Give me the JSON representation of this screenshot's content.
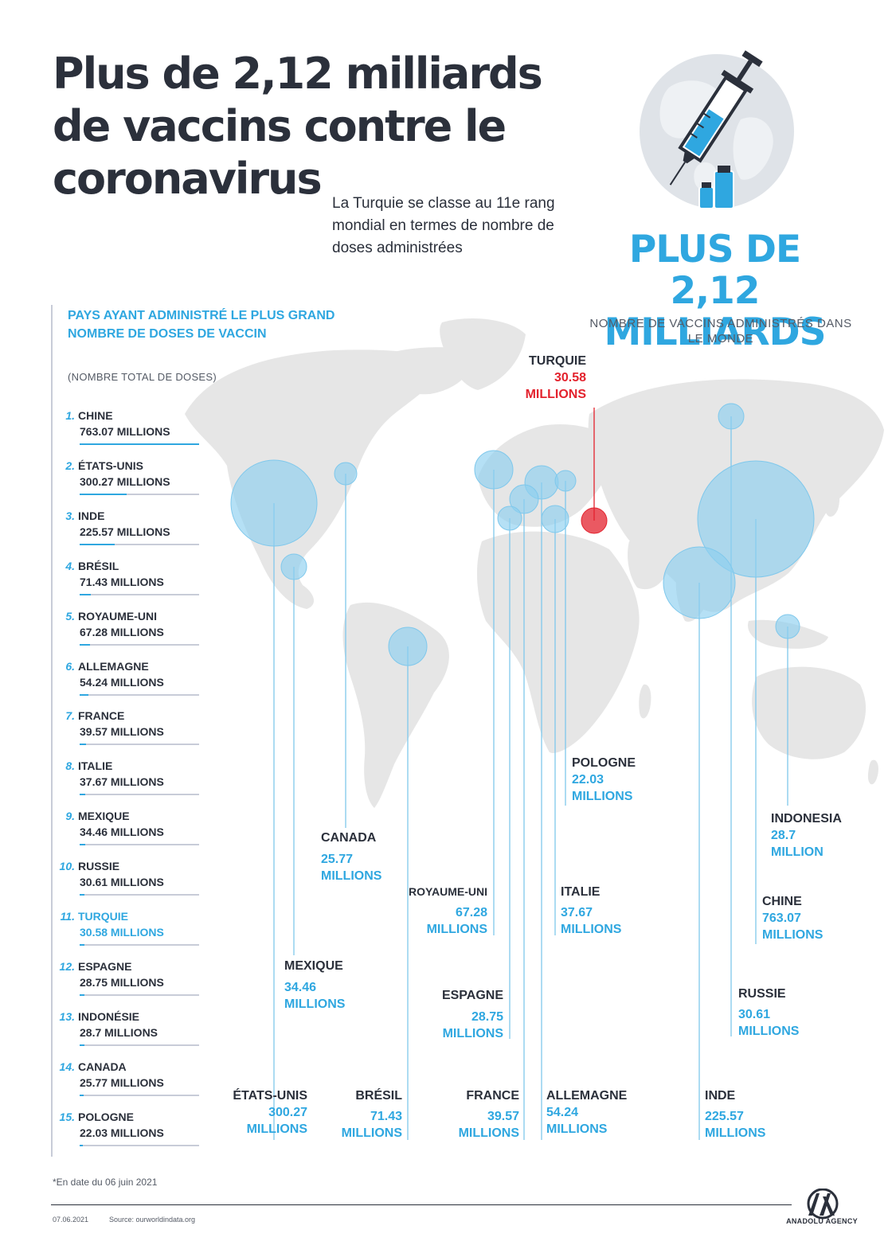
{
  "header": {
    "title": "Plus de 2,12 milliards de vaccins contre le coronavirus",
    "subtitle": "La Turquie se classe au 11e rang mondial en termes de nombre de doses administrées"
  },
  "total": {
    "headline": "PLUS DE 2,12 MILLIARDS",
    "caption": "NOMBRE DE VACCINS ADMINISTRÉS DANS LE MONDE"
  },
  "ranking": {
    "title": "PAYS AYANT ADMINISTRÉ LE PLUS GRAND NOMBRE DE DOSES DE VACCIN",
    "note": "(NOMBRE TOTAL DE DOSES)",
    "items": [
      {
        "rank": "1.",
        "name": "CHINE",
        "value_text": "763.07 MILLIONS",
        "value": 763.07
      },
      {
        "rank": "2.",
        "name": "ÉTATS-UNIS",
        "value_text": "300.27 MILLIONS",
        "value": 300.27
      },
      {
        "rank": "3.",
        "name": "INDE",
        "value_text": "225.57 MILLIONS",
        "value": 225.57
      },
      {
        "rank": "4.",
        "name": "BRÉSIL",
        "value_text": "71.43 MILLIONS",
        "value": 71.43
      },
      {
        "rank": "5.",
        "name": "ROYAUME-UNI",
        "value_text": "67.28 MILLIONS",
        "value": 67.28
      },
      {
        "rank": "6.",
        "name": "ALLEMAGNE",
        "value_text": "54.24 MILLIONS",
        "value": 54.24
      },
      {
        "rank": "7.",
        "name": "FRANCE",
        "value_text": "39.57 MILLIONS",
        "value": 39.57
      },
      {
        "rank": "8.",
        "name": "ITALIE",
        "value_text": "37.67 MILLIONS",
        "value": 37.67
      },
      {
        "rank": "9.",
        "name": "MEXIQUE",
        "value_text": "34.46 MILLIONS",
        "value": 34.46
      },
      {
        "rank": "10.",
        "name": "RUSSIE",
        "value_text": "30.61 MILLIONS",
        "value": 30.61
      },
      {
        "rank": "11.",
        "name": "TURQUIE",
        "value_text": "30.58 MILLIONS",
        "value": 30.58,
        "highlight": true
      },
      {
        "rank": "12.",
        "name": "ESPAGNE",
        "value_text": "28.75 MILLIONS",
        "value": 28.75
      },
      {
        "rank": "13.",
        "name": "INDONÉSIE",
        "value_text": "28.7 MILLIONS",
        "value": 28.7
      },
      {
        "rank": "14.",
        "name": "CANADA",
        "value_text": "25.77 MILLIONS",
        "value": 25.77
      },
      {
        "rank": "15.",
        "name": "POLOGNE",
        "value_text": "22.03 MILLIONS",
        "value": 22.03
      }
    ]
  },
  "callouts": {
    "turquie": {
      "name": "TURQUIE",
      "line1": "30.58",
      "line2": "MILLIONS"
    },
    "pologne": {
      "name": "POLOGNE",
      "line1": "22.03",
      "line2": "MILLIONS"
    },
    "indonesia": {
      "name": "INDONESIA",
      "line1": "28.7",
      "line2": "MILLION"
    },
    "canada": {
      "name": "CANADA",
      "line1": "25.77",
      "line2": "MILLIONS"
    },
    "royaume_uni": {
      "name": "ROYAUME-UNI",
      "line1": "67.28",
      "line2": "MILLIONS"
    },
    "italie": {
      "name": "ITALIE",
      "line1": "37.67",
      "line2": "MILLIONS"
    },
    "chine": {
      "name": "CHINE",
      "line1": "763.07",
      "line2": "MILLIONS"
    },
    "mexique": {
      "name": "MEXIQUE",
      "line1": "34.46",
      "line2": "MILLIONS"
    },
    "espagne": {
      "name": "ESPAGNE",
      "line1": "28.75",
      "line2": "MILLIONS"
    },
    "russie": {
      "name": "RUSSIE",
      "line1": "30.61",
      "line2": "MILLIONS"
    },
    "etats_unis": {
      "name": "ÉTATS-UNIS",
      "line1": "300.27",
      "line2": "MILLIONS"
    },
    "bresil": {
      "name": "BRÉSIL",
      "line1": "71.43",
      "line2": "MILLIONS"
    },
    "france": {
      "name": "FRANCE",
      "line1": "39.57",
      "line2": "MILLIONS"
    },
    "allemagne": {
      "name": "ALLEMAGNE",
      "line1": "54.24",
      "line2": "MILLIONS"
    },
    "inde": {
      "name": "INDE",
      "line1": "225.57",
      "line2": "MILLIONS"
    }
  },
  "footer": {
    "footnote": "*En date du 06 juin 2021",
    "date": "07.06.2021",
    "source": "Source: ourworldindata.org",
    "agency": "ANADOLU AGENCY"
  },
  "colors": {
    "accent": "#2fa7e0",
    "highlight": "#e3222d",
    "text": "#2b303b",
    "land": "#e6e6e6"
  }
}
